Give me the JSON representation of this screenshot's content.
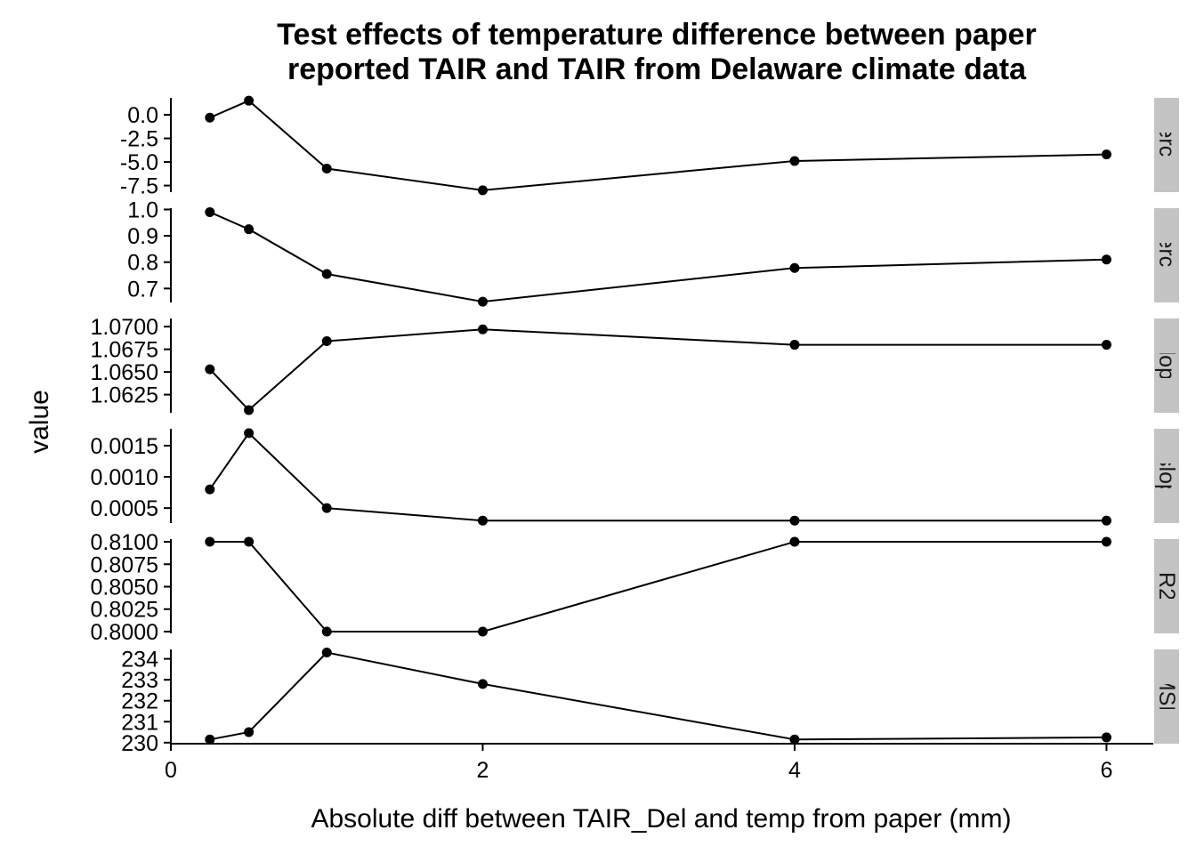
{
  "chart_data": {
    "type": "line",
    "title": "Test effects of temperature difference between paper\nreported TAIR and TAIR from Delaware climate data",
    "xlabel": "Absolute diff between TAIR_Del and temp from paper (mm)",
    "ylabel": "value",
    "xlim": [
      0,
      6.3
    ],
    "x_ticks": [
      0,
      2,
      4,
      6
    ],
    "x": [
      0.25,
      0.5,
      1,
      2,
      4,
      6
    ],
    "grid": false,
    "colors": {
      "line": "#000000",
      "strip_bg": "#c4c4c4",
      "axis": "#000000"
    },
    "panels": [
      {
        "strip": "intercept",
        "ylim": [
          -8.2,
          1.8
        ],
        "y_ticks": [
          0.0,
          -2.5,
          -5.0,
          -7.5
        ],
        "y_tick_labels": [
          "0.0",
          "-2.5",
          "-5.0",
          "-7.5"
        ],
        "values": [
          -0.3,
          1.5,
          -5.7,
          -8.0,
          -4.9,
          -4.2
        ]
      },
      {
        "strip": "intercept",
        "ylim": [
          0.647,
          1.005
        ],
        "y_ticks": [
          1.0,
          0.9,
          0.8,
          0.7
        ],
        "y_tick_labels": [
          "1.0",
          "0.9",
          "0.8",
          "0.7"
        ],
        "values": [
          0.99,
          0.925,
          0.755,
          0.65,
          0.778,
          0.81
        ]
      },
      {
        "strip": "slope",
        "ylim": [
          1.0605,
          1.0709
        ],
        "y_ticks": [
          1.07,
          1.0675,
          1.065,
          1.0625
        ],
        "y_tick_labels": [
          "1.0700",
          "1.0675",
          "1.0650",
          "1.0625"
        ],
        "values": [
          1.0653,
          1.0608,
          1.0684,
          1.0697,
          1.068,
          1.068
        ]
      },
      {
        "strip": "p(slope)",
        "ylim": [
          0.00026,
          0.00177
        ],
        "y_ticks": [
          0.0015,
          0.001,
          0.0005
        ],
        "y_tick_labels": [
          "0.0015",
          "0.0010",
          "0.0005"
        ],
        "values": [
          0.0008,
          0.0017,
          0.0005,
          0.0003,
          0.0003,
          0.0003
        ]
      },
      {
        "strip": "R2",
        "ylim": [
          0.7998,
          0.8103
        ],
        "y_ticks": [
          0.81,
          0.8075,
          0.805,
          0.8025,
          0.8
        ],
        "y_tick_labels": [
          "0.8100",
          "0.8075",
          "0.8050",
          "0.8025",
          "0.8000"
        ],
        "values": [
          0.81,
          0.81,
          0.8,
          0.8,
          0.81,
          0.81
        ]
      },
      {
        "strip": "MSE",
        "ylim": [
          229.95,
          234.45
        ],
        "y_ticks": [
          234,
          233,
          232,
          231,
          230
        ],
        "y_tick_labels": [
          "234",
          "233",
          "232",
          "231",
          "230"
        ],
        "values": [
          230.15,
          230.5,
          234.3,
          232.8,
          230.15,
          230.25
        ]
      }
    ]
  }
}
